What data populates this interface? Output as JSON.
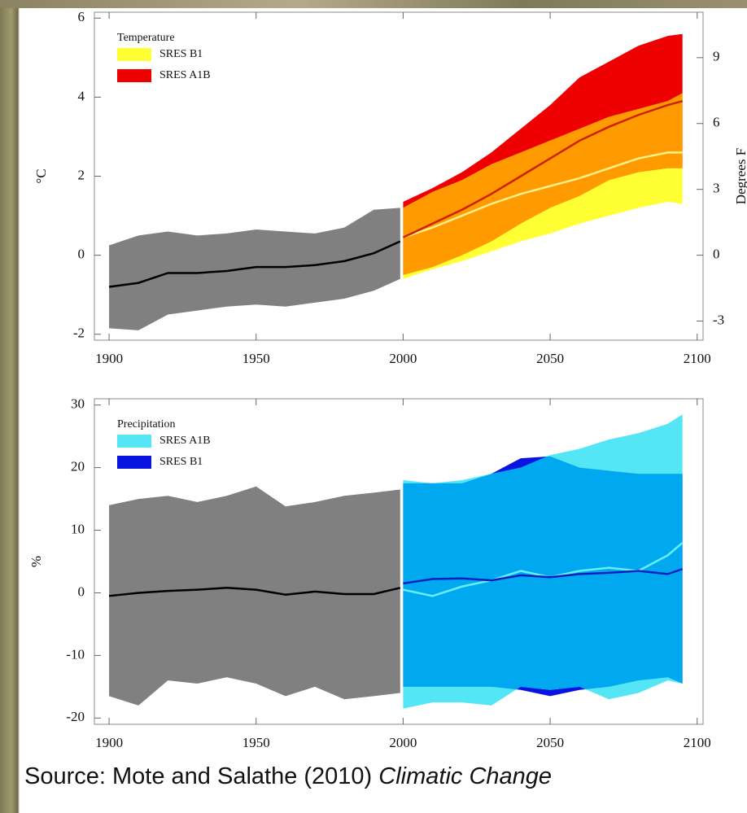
{
  "chart_data": [
    {
      "type": "band",
      "legend_title": "Temperature",
      "ylabel": "°C",
      "y2label": "Degrees F",
      "xlim": [
        1895,
        2102
      ],
      "xticks": [
        1900,
        1950,
        2000,
        2050,
        2100
      ],
      "ylim": [
        -2.15,
        6.15
      ],
      "yticks": [
        -2,
        0,
        2,
        4,
        6
      ],
      "y2lim": [
        -3.87,
        11.07
      ],
      "y2ticks": [
        -3,
        0,
        3,
        6,
        9
      ],
      "overlap_color": "#ff9a00",
      "series": [
        {
          "color": "#808080",
          "line_color": "#000000",
          "x": [
            1900,
            1910,
            1920,
            1930,
            1940,
            1950,
            1960,
            1970,
            1980,
            1990,
            1999
          ],
          "values": [
            -0.8,
            -0.7,
            -0.45,
            -0.45,
            -0.4,
            -0.3,
            -0.3,
            -0.25,
            -0.15,
            0.05,
            0.35
          ],
          "upper": [
            0.25,
            0.5,
            0.6,
            0.5,
            0.55,
            0.65,
            0.6,
            0.55,
            0.7,
            1.15,
            1.2
          ],
          "lower": [
            -1.85,
            -1.9,
            -1.5,
            -1.4,
            -1.3,
            -1.25,
            -1.3,
            -1.2,
            -1.1,
            -0.9,
            -0.6
          ]
        },
        {
          "name": "SRES A1B",
          "color": "#ee0000",
          "line_color": "#cc2200",
          "x": [
            2000,
            2010,
            2020,
            2030,
            2040,
            2050,
            2060,
            2070,
            2080,
            2090,
            2095
          ],
          "values": [
            0.45,
            0.8,
            1.15,
            1.55,
            2.0,
            2.45,
            2.9,
            3.25,
            3.55,
            3.8,
            3.9
          ],
          "upper": [
            1.35,
            1.7,
            2.1,
            2.6,
            3.2,
            3.8,
            4.5,
            4.9,
            5.3,
            5.55,
            5.6
          ],
          "lower": [
            -0.5,
            -0.3,
            0.0,
            0.35,
            0.8,
            1.2,
            1.5,
            1.9,
            2.1,
            2.2,
            2.2
          ]
        },
        {
          "name": "SRES B1",
          "color": "#ffff33",
          "line_color": "#fff08a",
          "x": [
            2000,
            2010,
            2020,
            2030,
            2040,
            2050,
            2060,
            2070,
            2080,
            2090,
            2095
          ],
          "values": [
            0.45,
            0.7,
            1.0,
            1.3,
            1.55,
            1.75,
            1.95,
            2.2,
            2.45,
            2.6,
            2.6
          ],
          "upper": [
            1.2,
            1.6,
            1.9,
            2.3,
            2.6,
            2.9,
            3.2,
            3.5,
            3.7,
            3.9,
            4.1
          ],
          "lower": [
            -0.6,
            -0.35,
            -0.15,
            0.1,
            0.35,
            0.55,
            0.8,
            1.0,
            1.2,
            1.35,
            1.3
          ]
        }
      ]
    },
    {
      "type": "band",
      "legend_title": "Precipitation",
      "ylabel": "%",
      "xlim": [
        1895,
        2102
      ],
      "xticks": [
        1900,
        1950,
        2000,
        2050,
        2100
      ],
      "ylim": [
        -21,
        31
      ],
      "yticks": [
        -20,
        -10,
        0,
        10,
        20,
        30
      ],
      "overlap_color": "#00a8f0",
      "series": [
        {
          "color": "#808080",
          "line_color": "#000000",
          "x": [
            1900,
            1910,
            1920,
            1930,
            1940,
            1950,
            1960,
            1970,
            1980,
            1990,
            1999
          ],
          "values": [
            -0.5,
            0,
            0.3,
            0.5,
            0.8,
            0.5,
            -0.3,
            0.2,
            -0.2,
            -0.2,
            0.8
          ],
          "upper": [
            14,
            15,
            15.5,
            14.5,
            15.5,
            17,
            13.8,
            14.5,
            15.5,
            16,
            16.5
          ],
          "lower": [
            -16.5,
            -18,
            -14,
            -14.5,
            -13.5,
            -14.5,
            -16.5,
            -15,
            -17,
            -16.5,
            -16
          ]
        },
        {
          "name": "SRES B1",
          "color": "#0a14e0",
          "line_color": "#1020c0",
          "x": [
            2000,
            2010,
            2020,
            2030,
            2040,
            2050,
            2060,
            2070,
            2080,
            2090,
            2095
          ],
          "values": [
            1.5,
            2.2,
            2.3,
            2,
            2.8,
            2.5,
            3,
            3.2,
            3.5,
            3,
            3.8
          ],
          "upper": [
            17.5,
            17.5,
            17.5,
            19,
            21.5,
            21.8,
            20,
            19.5,
            19,
            19,
            19
          ],
          "lower": [
            -15,
            -15,
            -15,
            -15,
            -15.5,
            -16.5,
            -15.5,
            -15,
            -14,
            -13.5,
            -14.5
          ]
        },
        {
          "name": "SRES A1B",
          "color": "#55e6f5",
          "line_color": "#66eeff",
          "x": [
            2000,
            2010,
            2020,
            2030,
            2040,
            2050,
            2060,
            2070,
            2080,
            2090,
            2095
          ],
          "values": [
            0.5,
            -0.5,
            1,
            2,
            3.5,
            2.5,
            3.5,
            4,
            3.5,
            6,
            8
          ],
          "upper": [
            18,
            17.5,
            18,
            19,
            20,
            22,
            23,
            24.5,
            25.5,
            27,
            28.5
          ],
          "lower": [
            -18.5,
            -17.5,
            -17.5,
            -18,
            -15,
            -15.5,
            -15,
            -17,
            -16,
            -14,
            -14.5
          ]
        }
      ]
    }
  ],
  "source": {
    "text": "Source: Mote and Salathe (2010) ",
    "journal": "Climatic Change"
  }
}
